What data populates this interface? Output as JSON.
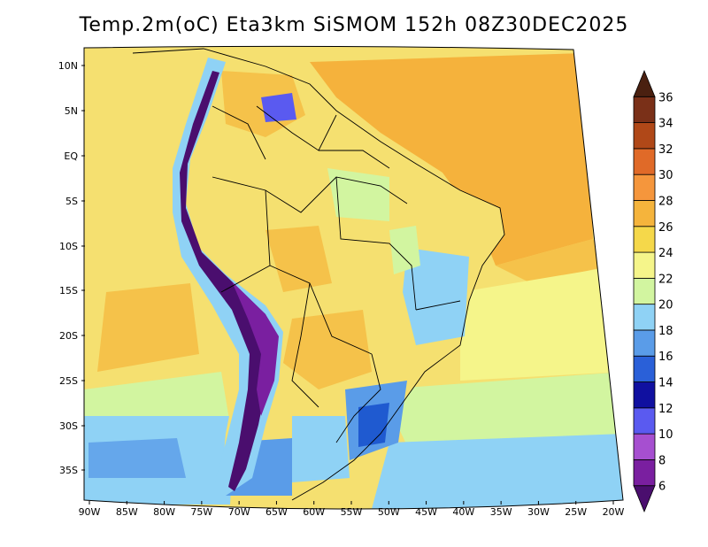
{
  "title": "Temp.2m(oC) Eta3km SiSMOM 152h 08Z30DEC2025",
  "lat_labels": [
    "10N",
    "5N",
    "EQ",
    "5S",
    "10S",
    "15S",
    "20S",
    "25S",
    "30S",
    "35S"
  ],
  "lon_labels": [
    "90W",
    "85W",
    "80W",
    "75W",
    "70W",
    "65W",
    "60W",
    "55W",
    "50W",
    "45W",
    "40W",
    "35W",
    "30W",
    "25W",
    "20W"
  ],
  "colorbar": {
    "labels": [
      "6",
      "8",
      "10",
      "12",
      "14",
      "16",
      "18",
      "20",
      "22",
      "24",
      "26",
      "28",
      "30",
      "32",
      "34",
      "36"
    ],
    "colors": [
      "#4a0e6e",
      "#7a1fa0",
      "#a64fd0",
      "#5a5af0",
      "#1010a0",
      "#2a60d8",
      "#5a9ce8",
      "#8fd2f5",
      "#d2f5a0",
      "#f5f58a",
      "#f5d84a",
      "#f5b43c",
      "#f5963c",
      "#e06a28",
      "#b04818",
      "#7a3018",
      "#4a2010"
    ]
  }
}
